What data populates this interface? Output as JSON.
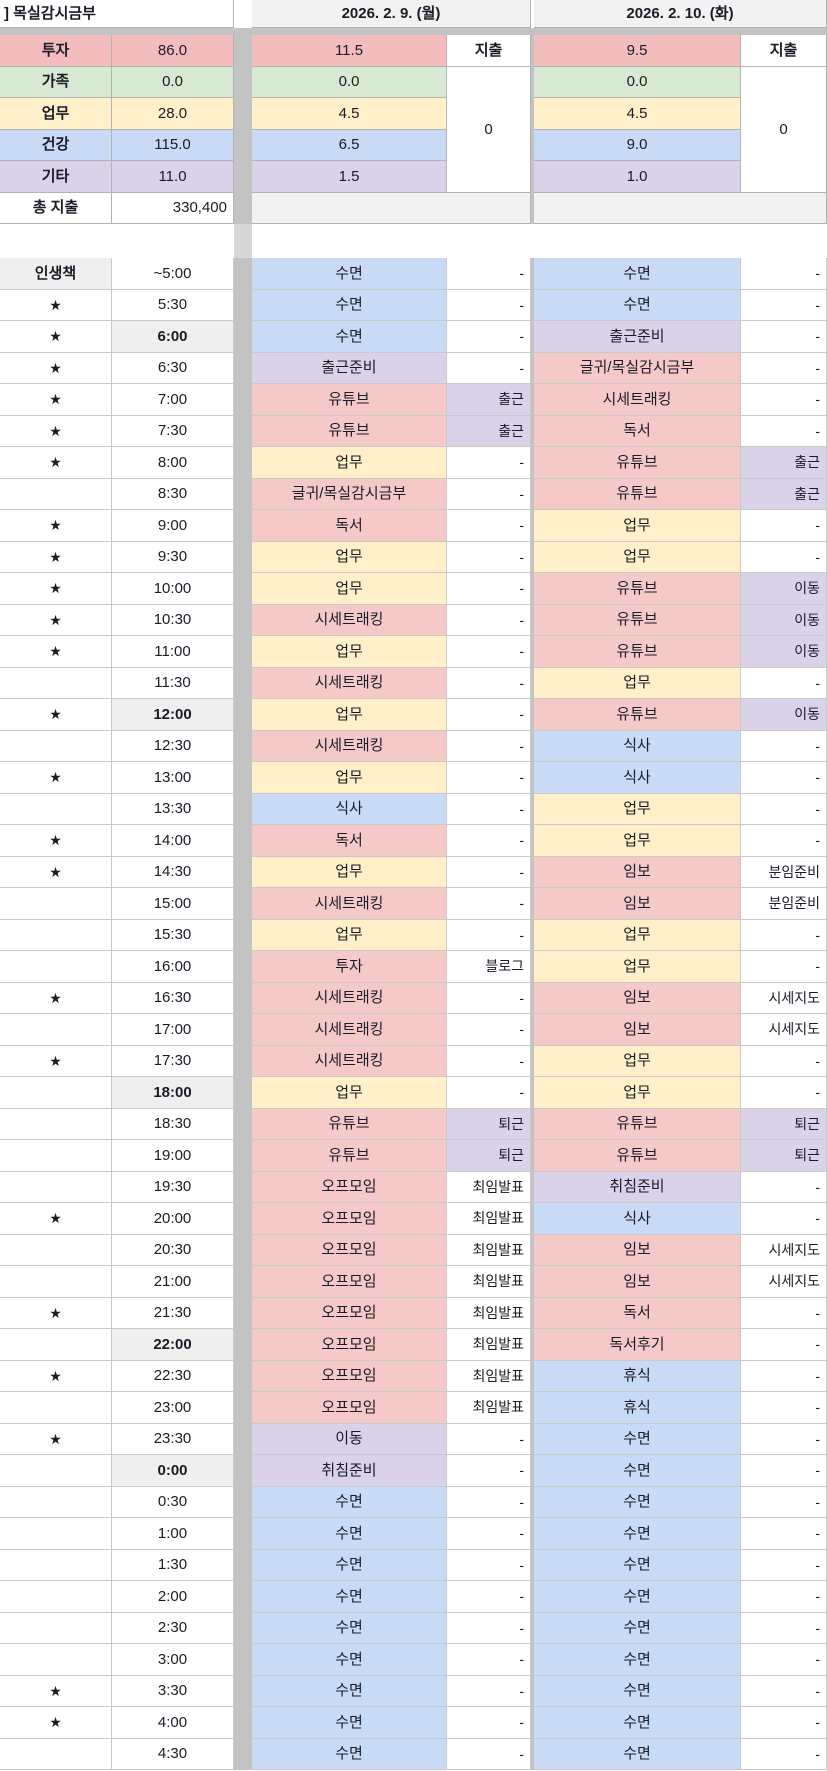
{
  "title": "] 목실감시금부",
  "header": {
    "day1_date": "2026. 2. 9. (월)",
    "day2_date": "2026. 2. 10. (화)"
  },
  "summary": {
    "expense_header": "지출",
    "rows": [
      {
        "label": "투자",
        "total": "86.0",
        "day1": "11.5",
        "day2": "9.5",
        "color": "p2"
      },
      {
        "label": "가족",
        "total": "0.0",
        "day1": "0.0",
        "day2": "0.0",
        "color": "g"
      },
      {
        "label": "업무",
        "total": "28.0",
        "day1": "4.5",
        "day2": "4.5",
        "color": "y"
      },
      {
        "label": "건강",
        "total": "115.0",
        "day1": "6.5",
        "day2": "9.0",
        "color": "b"
      },
      {
        "label": "기타",
        "total": "11.0",
        "day1": "1.5",
        "day2": "1.0",
        "color": "v"
      }
    ],
    "day1_expense_total": "0",
    "day2_expense_total": "0",
    "total_label": "총 지출",
    "total_value": "330,400"
  },
  "schedule": {
    "corner_label": "인생책",
    "star_glyph": "★",
    "rows": [
      [
        "~5:00",
        0,
        0,
        "수면",
        "b",
        "-",
        "",
        "수면",
        "b",
        "-",
        ""
      ],
      [
        "5:30",
        1,
        0,
        "수면",
        "b",
        "-",
        "",
        "수면",
        "b",
        "-",
        ""
      ],
      [
        "6:00",
        1,
        1,
        "수면",
        "b",
        "-",
        "",
        "출근준비",
        "v",
        "-",
        ""
      ],
      [
        "6:30",
        1,
        0,
        "출근준비",
        "v",
        "-",
        "",
        "글귀/목실감시금부",
        "p",
        "-",
        ""
      ],
      [
        "7:00",
        1,
        0,
        "유튜브",
        "p",
        "출근",
        "v",
        "시세트래킹",
        "p",
        "-",
        ""
      ],
      [
        "7:30",
        1,
        0,
        "유튜브",
        "p",
        "출근",
        "v",
        "독서",
        "p",
        "-",
        ""
      ],
      [
        "8:00",
        1,
        0,
        "업무",
        "y",
        "-",
        "",
        "유튜브",
        "p",
        "출근",
        "v"
      ],
      [
        "8:30",
        0,
        0,
        "글귀/목실감시금부",
        "p",
        "-",
        "",
        "유튜브",
        "p",
        "출근",
        "v"
      ],
      [
        "9:00",
        1,
        0,
        "독서",
        "p",
        "-",
        "",
        "업무",
        "y",
        "-",
        ""
      ],
      [
        "9:30",
        1,
        0,
        "업무",
        "y",
        "-",
        "",
        "업무",
        "y",
        "-",
        ""
      ],
      [
        "10:00",
        1,
        0,
        "업무",
        "y",
        "-",
        "",
        "유튜브",
        "p",
        "이동",
        "v"
      ],
      [
        "10:30",
        1,
        0,
        "시세트래킹",
        "p",
        "-",
        "",
        "유튜브",
        "p",
        "이동",
        "v"
      ],
      [
        "11:00",
        1,
        0,
        "업무",
        "y",
        "-",
        "",
        "유튜브",
        "p",
        "이동",
        "v"
      ],
      [
        "11:30",
        0,
        0,
        "시세트래킹",
        "p",
        "-",
        "",
        "업무",
        "y",
        "-",
        ""
      ],
      [
        "12:00",
        1,
        1,
        "업무",
        "y",
        "-",
        "",
        "유튜브",
        "p",
        "이동",
        "v"
      ],
      [
        "12:30",
        0,
        0,
        "시세트래킹",
        "p",
        "-",
        "",
        "식사",
        "b",
        "-",
        ""
      ],
      [
        "13:00",
        1,
        0,
        "업무",
        "y",
        "-",
        "",
        "식사",
        "b",
        "-",
        ""
      ],
      [
        "13:30",
        0,
        0,
        "식사",
        "b",
        "-",
        "",
        "업무",
        "y",
        "-",
        ""
      ],
      [
        "14:00",
        1,
        0,
        "독서",
        "p",
        "-",
        "",
        "업무",
        "y",
        "-",
        ""
      ],
      [
        "14:30",
        1,
        0,
        "업무",
        "y",
        "-",
        "",
        "임보",
        "p",
        "분임준비",
        ""
      ],
      [
        "15:00",
        0,
        0,
        "시세트래킹",
        "p",
        "-",
        "",
        "임보",
        "p",
        "분임준비",
        ""
      ],
      [
        "15:30",
        0,
        0,
        "업무",
        "y",
        "-",
        "",
        "업무",
        "y",
        "-",
        ""
      ],
      [
        "16:00",
        0,
        0,
        "투자",
        "p",
        "블로그",
        "",
        "업무",
        "y",
        "-",
        ""
      ],
      [
        "16:30",
        1,
        0,
        "시세트래킹",
        "p",
        "-",
        "",
        "임보",
        "p",
        "시세지도",
        ""
      ],
      [
        "17:00",
        0,
        0,
        "시세트래킹",
        "p",
        "-",
        "",
        "임보",
        "p",
        "시세지도",
        ""
      ],
      [
        "17:30",
        1,
        0,
        "시세트래킹",
        "p",
        "-",
        "",
        "업무",
        "y",
        "-",
        ""
      ],
      [
        "18:00",
        0,
        1,
        "업무",
        "y",
        "-",
        "",
        "업무",
        "y",
        "-",
        ""
      ],
      [
        "18:30",
        0,
        0,
        "유튜브",
        "p",
        "퇴근",
        "v",
        "유튜브",
        "p",
        "퇴근",
        "v"
      ],
      [
        "19:00",
        0,
        0,
        "유튜브",
        "p",
        "퇴근",
        "v",
        "유튜브",
        "p",
        "퇴근",
        "v"
      ],
      [
        "19:30",
        0,
        0,
        "오프모임",
        "p",
        "최임발표",
        "",
        "취침준비",
        "v",
        "-",
        ""
      ],
      [
        "20:00",
        1,
        0,
        "오프모임",
        "p",
        "최임발표",
        "",
        "식사",
        "b",
        "-",
        ""
      ],
      [
        "20:30",
        0,
        0,
        "오프모임",
        "p",
        "최임발표",
        "",
        "임보",
        "p",
        "시세지도",
        ""
      ],
      [
        "21:00",
        0,
        0,
        "오프모임",
        "p",
        "최임발표",
        "",
        "임보",
        "p",
        "시세지도",
        ""
      ],
      [
        "21:30",
        1,
        0,
        "오프모임",
        "p",
        "최임발표",
        "",
        "독서",
        "p",
        "-",
        ""
      ],
      [
        "22:00",
        0,
        1,
        "오프모임",
        "p",
        "최임발표",
        "",
        "독서후기",
        "p",
        "-",
        ""
      ],
      [
        "22:30",
        1,
        0,
        "오프모임",
        "p",
        "최임발표",
        "",
        "휴식",
        "b",
        "-",
        ""
      ],
      [
        "23:00",
        0,
        0,
        "오프모임",
        "p",
        "최임발표",
        "",
        "휴식",
        "b",
        "-",
        ""
      ],
      [
        "23:30",
        1,
        0,
        "이동",
        "v",
        "-",
        "",
        "수면",
        "b",
        "-",
        ""
      ],
      [
        "0:00",
        0,
        1,
        "취침준비",
        "v",
        "-",
        "",
        "수면",
        "b",
        "-",
        ""
      ],
      [
        "0:30",
        0,
        0,
        "수면",
        "b",
        "-",
        "",
        "수면",
        "b",
        "-",
        ""
      ],
      [
        "1:00",
        0,
        0,
        "수면",
        "b",
        "-",
        "",
        "수면",
        "b",
        "-",
        ""
      ],
      [
        "1:30",
        0,
        0,
        "수면",
        "b",
        "-",
        "",
        "수면",
        "b",
        "-",
        ""
      ],
      [
        "2:00",
        0,
        0,
        "수면",
        "b",
        "-",
        "",
        "수면",
        "b",
        "-",
        ""
      ],
      [
        "2:30",
        0,
        0,
        "수면",
        "b",
        "-",
        "",
        "수면",
        "b",
        "-",
        ""
      ],
      [
        "3:00",
        0,
        0,
        "수면",
        "b",
        "-",
        "",
        "수면",
        "b",
        "-",
        ""
      ],
      [
        "3:30",
        1,
        0,
        "수면",
        "b",
        "-",
        "",
        "수면",
        "b",
        "-",
        ""
      ],
      [
        "4:00",
        1,
        0,
        "수면",
        "b",
        "-",
        "",
        "수면",
        "b",
        "-",
        ""
      ],
      [
        "4:30",
        0,
        0,
        "수면",
        "b",
        "-",
        "",
        "수면",
        "b",
        "-",
        ""
      ]
    ]
  },
  "colors": {
    "p": "#f6c9c9",
    "p2": "#f3bdbd",
    "g": "#d7e9d2",
    "y": "#fff0c9",
    "b": "#c9daf6",
    "v": "#d9d2e9",
    "w": "#ffffff",
    "header_bg": "#f2f2f2",
    "bold_time_bg": "#efefef",
    "empty_band_bg": "#f1f1f1",
    "divider": "#c3c3c3",
    "divider_light": "#d7d7d7",
    "ink": "#1b1b27"
  }
}
